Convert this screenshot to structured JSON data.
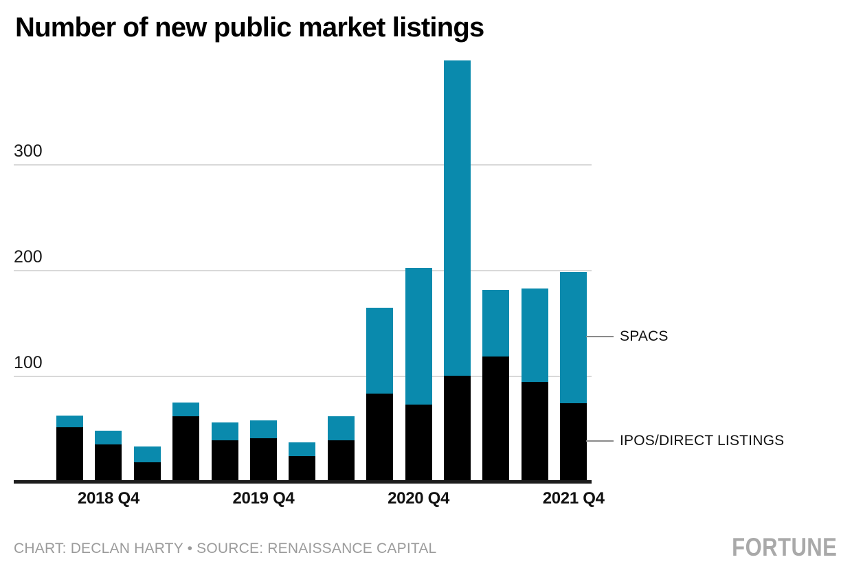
{
  "title": "Number of new public market listings",
  "annotations": {
    "spac_label": "SPACS",
    "ipo_label": "IPOS/DIRECT LISTINGS"
  },
  "footer": {
    "credit": "CHART: DECLAN HARTY • SOURCE: RENAISSANCE CAPITAL",
    "brand": "FORTUNE"
  },
  "colors": {
    "ipo": "#000000",
    "spac": "#0a8aad",
    "gridline": "#d9d9d9",
    "axis": "#1d1d1d",
    "leader": "#8a8a8a",
    "credit_text": "#9b9b9b",
    "brand_text": "#a9a9a9"
  },
  "chart_data": {
    "type": "bar",
    "stacked": true,
    "title": "Number of new public market listings",
    "categories": [
      "2018 Q3",
      "2018 Q4",
      "2019 Q1",
      "2019 Q2",
      "2019 Q3",
      "2019 Q4",
      "2020 Q1",
      "2020 Q2",
      "2020 Q3",
      "2020 Q4",
      "2021 Q1",
      "2021 Q2",
      "2021 Q3",
      "2021 Q4"
    ],
    "series": [
      {
        "name": "IPOS/DIRECT LISTINGS",
        "color": "#000000",
        "values": [
          51,
          35,
          18,
          62,
          39,
          41,
          24,
          39,
          83,
          73,
          100,
          118,
          94,
          74
        ]
      },
      {
        "name": "SPACS",
        "color": "#0a8aad",
        "values": [
          11,
          13,
          15,
          13,
          17,
          17,
          13,
          23,
          81,
          129,
          298,
          63,
          88,
          124
        ]
      }
    ],
    "x_tick_labels": [
      "2018 Q4",
      "2019 Q4",
      "2020 Q4",
      "2021 Q4"
    ],
    "x_tick_indices": [
      1,
      5,
      9,
      13
    ],
    "y_ticks": [
      100,
      200,
      300
    ],
    "ylim": [
      0,
      420
    ],
    "grid": "horizontal",
    "legend_position": "right-annotations",
    "xlabel": "",
    "ylabel": ""
  }
}
